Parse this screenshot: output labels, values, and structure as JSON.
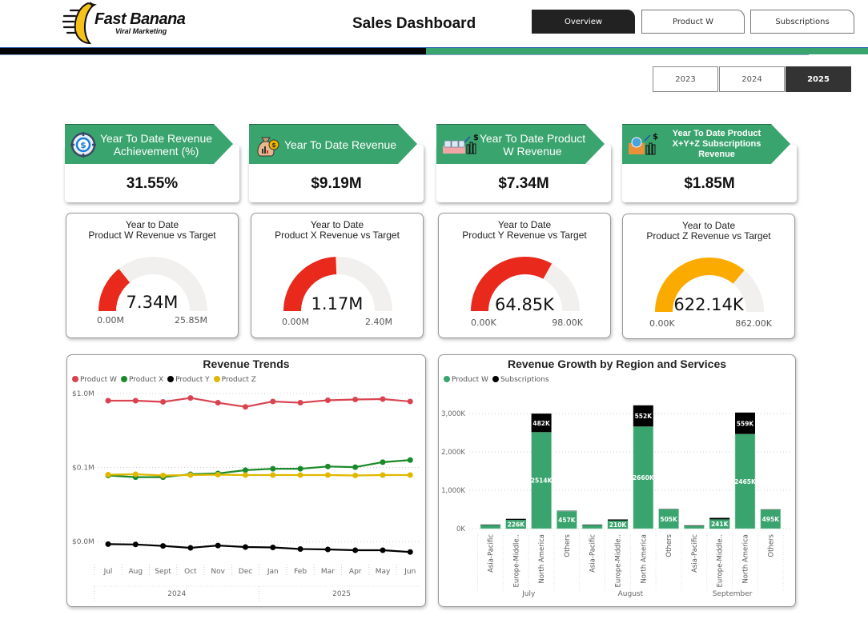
{
  "header": {
    "logo_title": "Fast Banana",
    "logo_subtitle": "Viral Marketing",
    "title": "Sales Dashboard",
    "tabs": [
      {
        "label": "Overview",
        "active": true
      },
      {
        "label": "Product W",
        "active": false
      },
      {
        "label": "Subscriptions",
        "active": false
      }
    ]
  },
  "years": [
    {
      "label": "2023",
      "active": false
    },
    {
      "label": "2024",
      "active": false
    },
    {
      "label": "2025",
      "active": true
    }
  ],
  "kpis": [
    {
      "label": "Year To Date Revenue Achievement (%)",
      "value": "31.55%",
      "icon": "target-dollar-icon"
    },
    {
      "label": "Year To Date Revenue",
      "value": "$9.19M",
      "icon": "money-bag-icon"
    },
    {
      "label": "Year To Date Product W Revenue",
      "value": "$7.34M",
      "icon": "product-w-growth-icon"
    },
    {
      "label": "Year To Date Product X+Y+Z Subscriptions Revenue",
      "value": "$1.85M",
      "icon": "subscription-growth-icon"
    }
  ],
  "gauges": [
    {
      "title1": "Year to Date",
      "title2": "Product W Revenue vs Target",
      "value_label": "7.34M",
      "min_label": "0.00M",
      "max_label": "25.85M",
      "value": 7.34,
      "max": 25.85,
      "color": "#e8291c"
    },
    {
      "title1": "Year to Date",
      "title2": "Product X Revenue vs Target",
      "value_label": "1.17M",
      "min_label": "0.00M",
      "max_label": "2.40M",
      "value": 1.17,
      "max": 2.4,
      "color": "#e8291c"
    },
    {
      "title1": "Year to Date",
      "title2": "Product Y Revenue vs Target",
      "value_label": "64.85K",
      "min_label": "0.00K",
      "max_label": "98.00K",
      "value": 64.85,
      "max": 98.0,
      "color": "#e8291c"
    },
    {
      "title1": "Year to Date",
      "title2": "Product Z Revenue vs Target",
      "value_label": "622.14K",
      "min_label": "0.00K",
      "max_label": "862.00K",
      "value": 622.14,
      "max": 862.0,
      "color": "#fbab00"
    }
  ],
  "chart_data": [
    {
      "type": "line",
      "title": "Revenue Trends",
      "yscale": "log",
      "y_ticks": [
        {
          "label": "$1.0M",
          "value": 1.0
        },
        {
          "label": "$0.1M",
          "value": 0.1
        },
        {
          "label": "$0.0M",
          "value": 0.01
        }
      ],
      "x": [
        "Jul",
        "Aug",
        "Sept",
        "Oct",
        "Nov",
        "Dec",
        "Jan",
        "Feb",
        "Mar",
        "Apr",
        "May",
        "Jun"
      ],
      "x_groups": [
        {
          "label": "2024",
          "count": 6
        },
        {
          "label": "2025",
          "count": 6
        }
      ],
      "series": [
        {
          "name": "Product W",
          "color": "#d9434f",
          "values": [
            0.8,
            0.8,
            0.77,
            0.87,
            0.75,
            0.66,
            0.78,
            0.75,
            0.81,
            0.83,
            0.84,
            0.78
          ]
        },
        {
          "name": "Product X",
          "color": "#1a8a2a",
          "values": [
            0.078,
            0.074,
            0.074,
            0.081,
            0.083,
            0.092,
            0.096,
            0.096,
            0.103,
            0.101,
            0.118,
            0.126
          ]
        },
        {
          "name": "Product Y",
          "color": "#000000",
          "values": [
            0.0092,
            0.0091,
            0.0087,
            0.0082,
            0.0088,
            0.0084,
            0.0083,
            0.0079,
            0.0078,
            0.0076,
            0.0076,
            0.0072
          ]
        },
        {
          "name": "Product Z",
          "color": "#e0b800",
          "values": [
            0.08,
            0.081,
            0.078,
            0.079,
            0.08,
            0.079,
            0.079,
            0.079,
            0.079,
            0.078,
            0.079,
            0.079
          ]
        }
      ]
    },
    {
      "type": "bar",
      "stacked": true,
      "title": "Revenue Growth by Region and Services",
      "ylim": [
        0,
        3300
      ],
      "y_ticks": [
        {
          "label": "0K",
          "value": 0
        },
        {
          "label": "1,000K",
          "value": 1000
        },
        {
          "label": "2,000K",
          "value": 2000
        },
        {
          "label": "3,000K",
          "value": 3000
        }
      ],
      "groups": [
        {
          "label": "July",
          "categories": [
            "Asia-Pacific",
            "Europe-Middle..",
            "North America",
            "Others"
          ]
        },
        {
          "label": "August",
          "categories": [
            "Asia-Pacific",
            "Europe-Middle..",
            "North America",
            "Others"
          ]
        },
        {
          "label": "September",
          "categories": [
            "Asia-Pacific",
            "Europe-Middle..",
            "North America",
            "Others"
          ]
        }
      ],
      "series": [
        {
          "name": "Product W",
          "color": "#3aa46e",
          "values": [
            95,
            226,
            2514,
            457,
            95,
            210,
            2660,
            505,
            75,
            241,
            2465,
            495
          ],
          "labels": [
            "",
            "226K",
            "2514K",
            "457K",
            "",
            "210K",
            "2660K",
            "505K",
            "",
            "241K",
            "2465K",
            "495K"
          ]
        },
        {
          "name": "Subscriptions",
          "color": "#000000",
          "values": [
            12,
            30,
            482,
            8,
            12,
            30,
            552,
            8,
            12,
            40,
            559,
            8
          ],
          "labels": [
            "",
            "",
            "482K",
            "",
            "",
            "",
            "552K",
            "",
            "",
            "",
            "559K",
            ""
          ]
        }
      ]
    }
  ]
}
